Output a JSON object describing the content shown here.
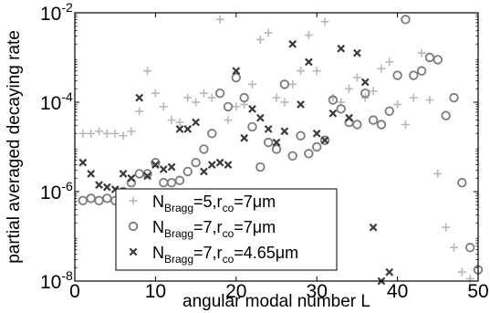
{
  "chart_data": {
    "type": "scatter",
    "xlabel": "angular modal number L",
    "ylabel": "partial averaged decaying rate",
    "xlim": [
      0,
      50
    ],
    "ylim_log10": [
      -8,
      -2
    ],
    "y_scale": "log",
    "x_ticks": [
      {
        "value": 0,
        "label": "0"
      },
      {
        "value": 10,
        "label": "10"
      },
      {
        "value": 20,
        "label": "20"
      },
      {
        "value": 30,
        "label": "30"
      },
      {
        "value": 40,
        "label": "40"
      },
      {
        "value": 50,
        "label": "50"
      }
    ],
    "y_ticks": [
      {
        "exp": -8,
        "base": "10",
        "power": "-8"
      },
      {
        "exp": -6,
        "base": "10",
        "power": "-6"
      },
      {
        "exp": -4,
        "base": "10",
        "power": "-4"
      },
      {
        "exp": -2,
        "base": "10",
        "power": "-2"
      }
    ],
    "grid": false,
    "legend_position": "bottom-left",
    "series": [
      {
        "legend": {
          "main": "N",
          "sub": "Bragg",
          "rest": "=5,r",
          "sub2": "co",
          "rest2": "=7μm"
        },
        "marker": "plus",
        "color": "#b8b8b8",
        "x": [
          1,
          2,
          3,
          4,
          5,
          6,
          7,
          8,
          9,
          10,
          11,
          12,
          13,
          14,
          15,
          16,
          17,
          18,
          19,
          20,
          21,
          22,
          23,
          24,
          25,
          26,
          27,
          28,
          29,
          30,
          31,
          32,
          33,
          34,
          35,
          36,
          37,
          38,
          39,
          40,
          41,
          42,
          43,
          44,
          45,
          46,
          47,
          48,
          49
        ],
        "log10_y": [
          -4.7,
          -4.7,
          -4.65,
          -4.7,
          -4.7,
          -4.75,
          -4.65,
          -4.2,
          -3.3,
          -3.8,
          -4.1,
          -4.4,
          -4.45,
          -3.9,
          -4.0,
          -3.8,
          -3.9,
          -2.15,
          -4.4,
          -4.1,
          -4.05,
          -3.6,
          -2.6,
          -2.45,
          -3.9,
          -4.0,
          -3.6,
          -3.3,
          -2.5,
          -3.3,
          -2.2,
          -3.9,
          -4.0,
          -3.7,
          -3.45,
          -3.9,
          -3.75,
          -3.25,
          -3.1,
          -4.05,
          -4.5,
          -3.9,
          -2.9,
          -3.95,
          -5.6,
          -6.8,
          -7.25,
          -7.8,
          -7.95
        ]
      },
      {
        "legend": {
          "main": "N",
          "sub": "Bragg",
          "rest": "=7,r",
          "sub2": "co",
          "rest2": "=7μm"
        },
        "marker": "circle",
        "color": "#7c7c7c",
        "x": [
          1,
          2,
          3,
          4,
          5,
          6,
          7,
          8,
          9,
          10,
          11,
          12,
          13,
          14,
          15,
          16,
          17,
          18,
          19,
          20,
          21,
          22,
          23,
          24,
          25,
          26,
          27,
          28,
          29,
          30,
          31,
          32,
          33,
          34,
          35,
          36,
          37,
          38,
          39,
          40,
          41,
          42,
          43,
          44,
          45,
          46,
          47,
          48,
          49,
          50
        ],
        "log10_y": [
          -6.2,
          -6.15,
          -6.2,
          -6.15,
          -6.2,
          -6.0,
          -5.8,
          -5.6,
          -5.6,
          -5.35,
          -5.8,
          -5.8,
          -5.75,
          -5.55,
          -5.35,
          -5.05,
          -4.7,
          -3.8,
          -4.1,
          -3.45,
          -3.9,
          -4.55,
          -5.45,
          -4.9,
          -5.05,
          -3.6,
          -5.2,
          -4.75,
          -5.15,
          -5.0,
          -4.85,
          -3.95,
          -4.15,
          -4.45,
          -4.5,
          -3.8,
          -4.4,
          -4.5,
          -4.2,
          -3.4,
          -2.15,
          -3.4,
          -3.3,
          -3.0,
          -3.05,
          -4.3,
          -3.9,
          -5.8,
          -7.25,
          -7.75
        ]
      },
      {
        "legend": {
          "main": "N",
          "sub": "Bragg",
          "rest": "=7,r",
          "sub2": "co",
          "rest2": "=4.65μm"
        },
        "marker": "x",
        "color": "#3a3a3a",
        "x": [
          1,
          2,
          3,
          4,
          5,
          6,
          7,
          8,
          9,
          10,
          11,
          12,
          13,
          14,
          15,
          16,
          17,
          18,
          19,
          20,
          21,
          22,
          23,
          24,
          25,
          26,
          27,
          28,
          29,
          30,
          31,
          32,
          33,
          34,
          35,
          36,
          37,
          38,
          39
        ],
        "log10_y": [
          -5.35,
          -5.6,
          -5.85,
          -5.9,
          -5.95,
          -5.6,
          -5.7,
          -3.9,
          -5.65,
          -5.4,
          -5.5,
          -5.45,
          -4.6,
          -4.6,
          -4.45,
          -5.55,
          -5.4,
          -5.35,
          -5.4,
          -3.3,
          -4.8,
          -4.15,
          -4.35,
          -4.6,
          -4.9,
          -4.65,
          -2.7,
          -4.05,
          -3.1,
          -4.7,
          -4.85,
          -4.25,
          -2.8,
          -4.35,
          -2.9,
          -3.55,
          -6.8,
          -8.0,
          -7.8
        ]
      }
    ]
  }
}
